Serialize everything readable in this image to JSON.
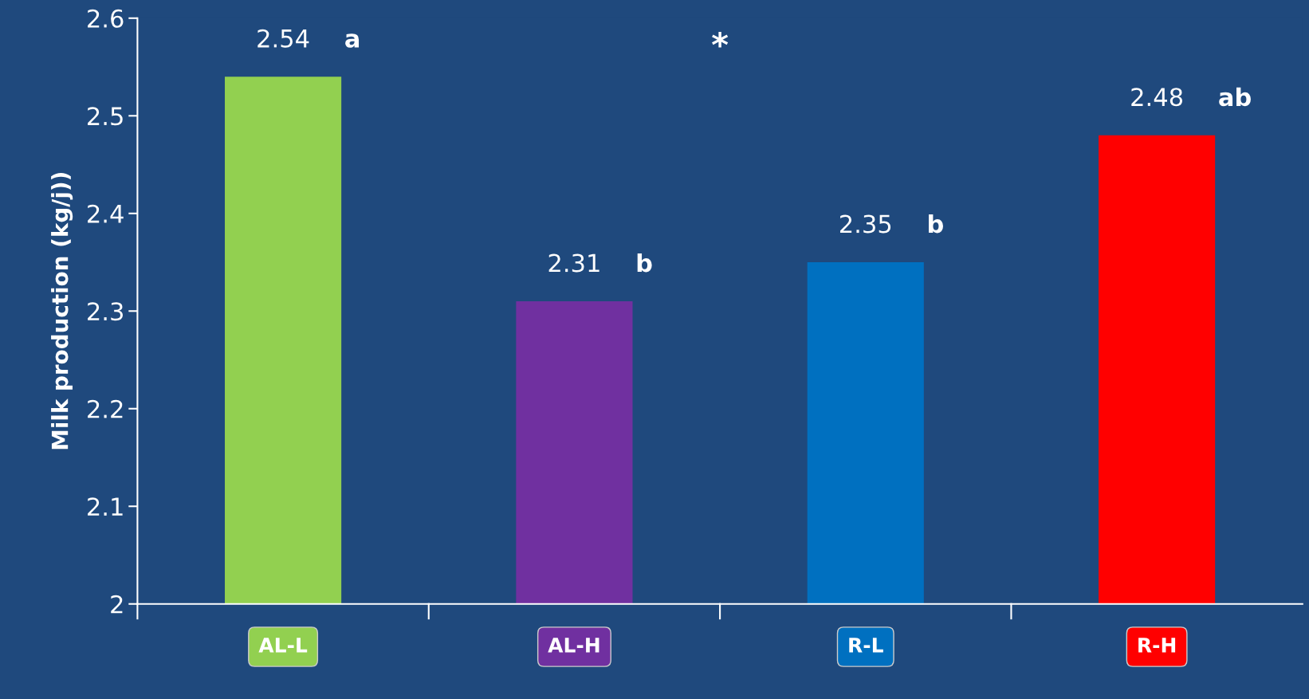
{
  "chart_data": {
    "type": "bar",
    "ylabel": "Milk production (kg/j))",
    "categories": [
      "AL-L",
      "AL-H",
      "R-L",
      "R-H"
    ],
    "values": [
      2.54,
      2.31,
      2.35,
      2.48
    ],
    "colors": [
      "#92d050",
      "#7030a0",
      "#0070c0",
      "#ff0000"
    ],
    "ylim": [
      2,
      2.6
    ],
    "yticks": [
      2,
      2.1,
      2.2,
      2.3,
      2.4,
      2.5,
      2.6
    ],
    "data_labels": true,
    "grid": false,
    "legend": false,
    "annotations": [
      {
        "text": "a",
        "x": "AL-L",
        "y": 2.54
      },
      {
        "text": "b",
        "x": "AL-H",
        "y": 2.31
      },
      {
        "text": "b",
        "x": "R-L",
        "y": 2.35
      },
      {
        "text": "ab",
        "x": "R-H",
        "y": 2.48
      },
      "*"
    ]
  }
}
